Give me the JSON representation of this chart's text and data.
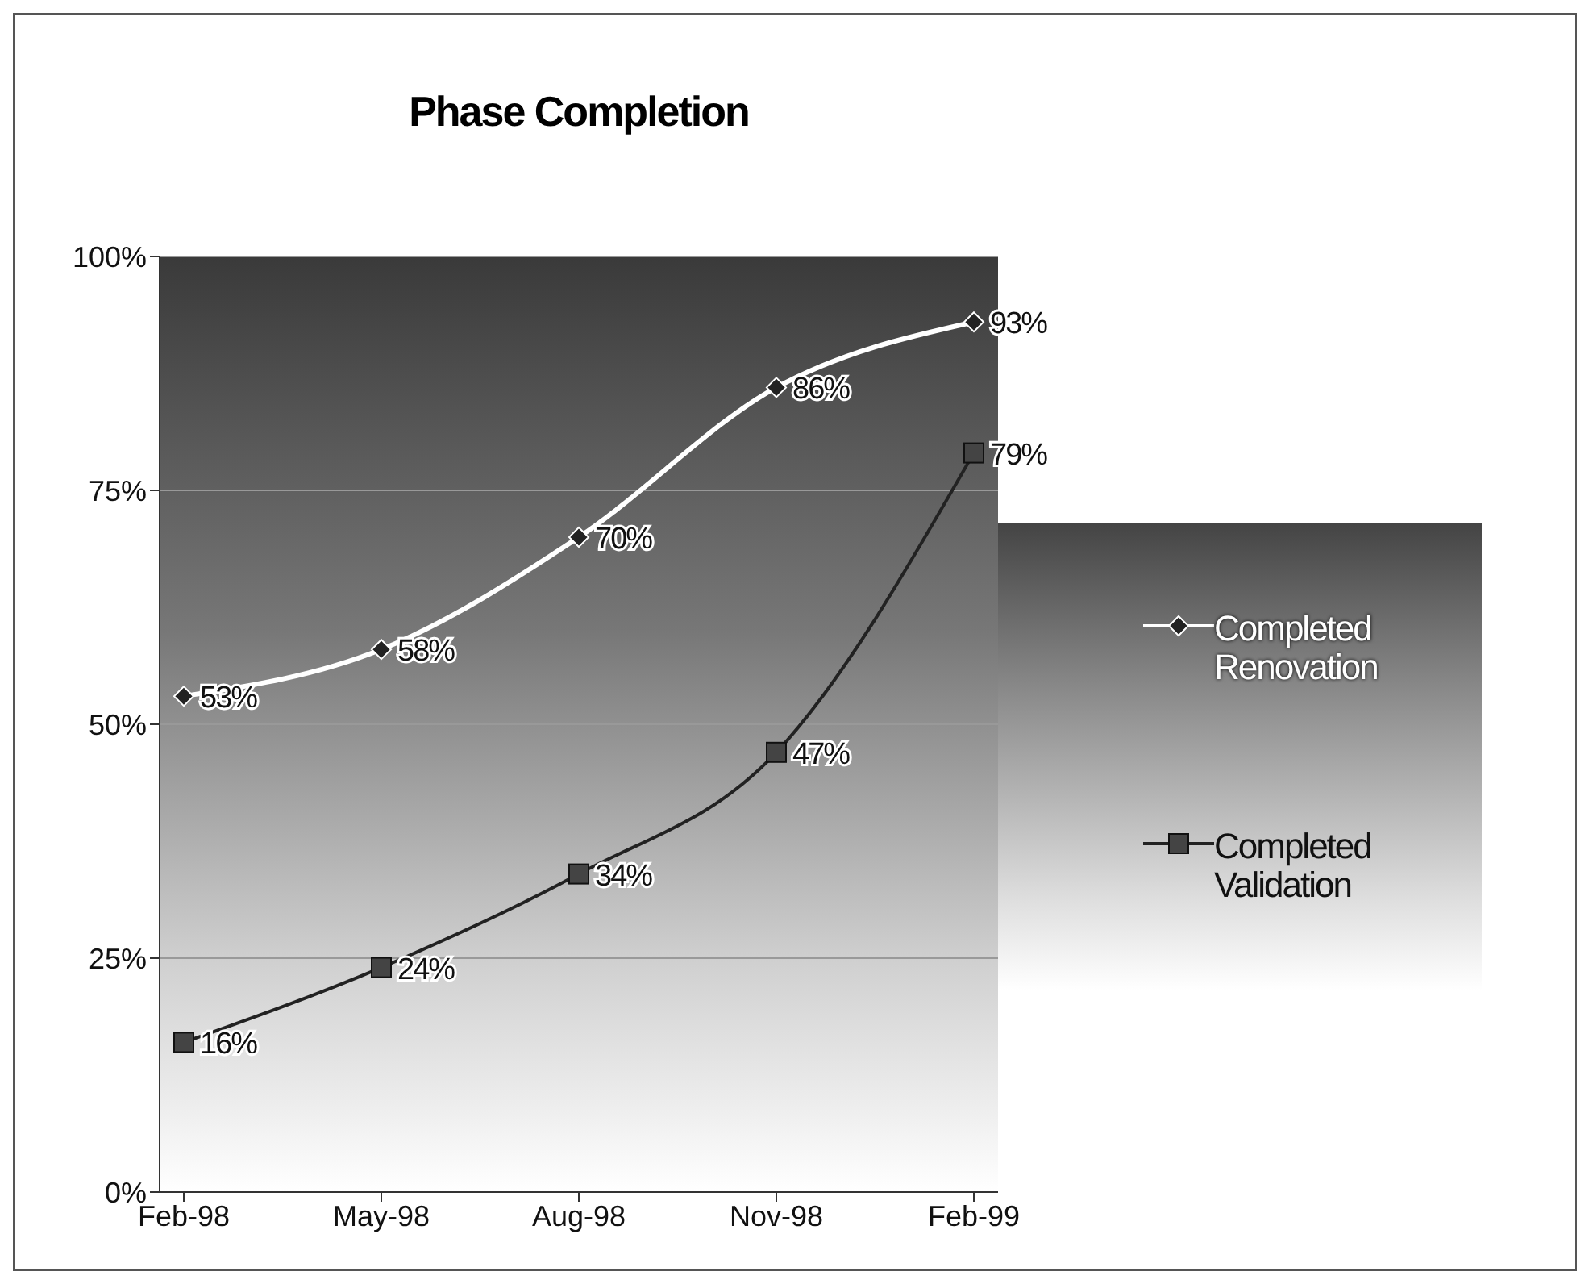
{
  "chart_data": {
    "type": "line",
    "title": "Phase Completion",
    "categories": [
      "Feb-98",
      "May-98",
      "Aug-98",
      "Nov-98",
      "Feb-99"
    ],
    "series": [
      {
        "name": "Completed Renovation",
        "color": "#ffffff",
        "marker": "diamond",
        "values": [
          53,
          58,
          70,
          86,
          93
        ],
        "value_labels": [
          "53%",
          "58%",
          "70%",
          "86%",
          "93%"
        ]
      },
      {
        "name": "Completed Validation",
        "color": "#222222",
        "marker": "square",
        "values": [
          16,
          24,
          34,
          47,
          79
        ],
        "value_labels": [
          "16%",
          "24%",
          "34%",
          "47%",
          "79%"
        ]
      }
    ],
    "ylim": [
      0,
      100
    ],
    "yticks": [
      {
        "value": 0,
        "label": "0%"
      },
      {
        "value": 25,
        "label": "25%"
      },
      {
        "value": 50,
        "label": "50%"
      },
      {
        "value": 75,
        "label": "75%"
      },
      {
        "value": 100,
        "label": "100%"
      }
    ],
    "grid": "y",
    "legend": "right"
  }
}
